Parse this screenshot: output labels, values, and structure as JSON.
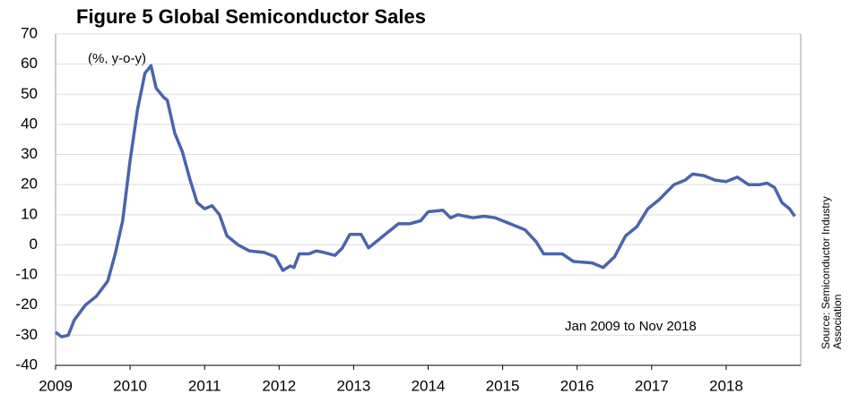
{
  "chart_data": {
    "type": "line",
    "title": "Figure 5 Global Semiconductor Sales",
    "y_label": "(%, y-o-y)",
    "annotation": "Jan 2009 to Nov 2018",
    "source": [
      "Source: Semiconductor Industry",
      "Association"
    ],
    "x": [
      2009.0,
      2009.08,
      2009.17,
      2009.25,
      2009.4,
      2009.55,
      2009.7,
      2009.8,
      2009.9,
      2010.0,
      2010.1,
      2010.2,
      2010.28,
      2010.35,
      2010.45,
      2010.5,
      2010.6,
      2010.7,
      2010.8,
      2010.9,
      2011.0,
      2011.1,
      2011.2,
      2011.3,
      2011.45,
      2011.6,
      2011.8,
      2011.95,
      2012.05,
      2012.15,
      2012.2,
      2012.27,
      2012.4,
      2012.5,
      2012.6,
      2012.75,
      2012.85,
      2012.95,
      2013.1,
      2013.2,
      2013.3,
      2013.4,
      2013.6,
      2013.75,
      2013.9,
      2014.0,
      2014.2,
      2014.3,
      2014.4,
      2014.6,
      2014.75,
      2014.9,
      2015.1,
      2015.3,
      2015.45,
      2015.55,
      2015.8,
      2015.95,
      2016.2,
      2016.35,
      2016.5,
      2016.65,
      2016.8,
      2016.95,
      2017.1,
      2017.3,
      2017.45,
      2017.55,
      2017.7,
      2017.85,
      2018.0,
      2018.15,
      2018.3,
      2018.45,
      2018.55,
      2018.65,
      2018.75,
      2018.85,
      2018.92
    ],
    "series": [
      {
        "name": "Global semiconductor sales",
        "color": "#4a64ad",
        "values": [
          -29,
          -30.5,
          -30,
          -25,
          -20,
          -17,
          -12,
          -3,
          8,
          28,
          45,
          57,
          59.5,
          52,
          49,
          48,
          37,
          31,
          22,
          14,
          12,
          13,
          10,
          3,
          0,
          -2,
          -2.5,
          -4,
          -8.5,
          -7,
          -7.5,
          -3,
          -3,
          -2,
          -2.5,
          -3.5,
          -1,
          3.5,
          3.5,
          -1,
          1,
          3,
          7,
          7,
          8,
          11,
          11.5,
          9,
          10,
          9,
          9.5,
          9,
          7,
          5,
          1,
          -3,
          -3,
          -5.5,
          -6,
          -7.5,
          -4,
          3,
          6,
          12,
          15,
          20,
          21.5,
          23.5,
          23,
          21.5,
          21,
          22.5,
          20,
          20,
          20.5,
          19,
          14,
          12,
          9.5
        ]
      }
    ],
    "xlim": [
      2009,
      2019
    ],
    "xticks": [
      2009,
      2010,
      2011,
      2012,
      2013,
      2014,
      2015,
      2016,
      2017,
      2018
    ],
    "ylim": [
      -40,
      70
    ],
    "yticks": [
      -40,
      -30,
      -20,
      -10,
      0,
      10,
      20,
      30,
      40,
      50,
      60,
      70
    ],
    "grid": true
  }
}
